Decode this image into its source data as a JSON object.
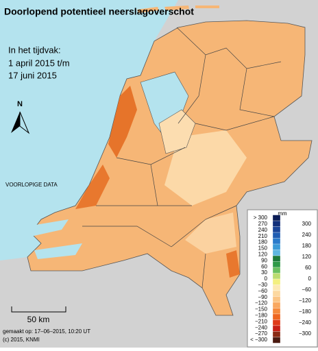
{
  "title": "Doorlopend potentieel neerslagoverschot",
  "period": {
    "label": "In het tijdvak:",
    "start": "1 april 2015 t/m",
    "end": "17 juni 2015"
  },
  "north": "N",
  "notice": "VOORLOPIGE DATA",
  "scale": "50 km",
  "legend": {
    "unit": "mm",
    "left_labels": [
      "> 300",
      "270",
      "240",
      "210",
      "180",
      "150",
      "120",
      "90",
      "60",
      "30",
      "0",
      "−30",
      "−60",
      "−90",
      "−120",
      "−150",
      "−180",
      "−210",
      "−240",
      "−270",
      "< −300"
    ],
    "right_labels": [
      "300",
      "240",
      "180",
      "120",
      "60",
      "0",
      "−60",
      "−120",
      "−180",
      "−240",
      "−300"
    ],
    "colors": [
      "#0b1d55",
      "#12307a",
      "#1a4598",
      "#205db2",
      "#2b7bcb",
      "#3c9ad7",
      "#5eb6e0",
      "#1d7a3a",
      "#2f9a48",
      "#6cc060",
      "#bcdc70",
      "#f3ef80",
      "#fde9b4",
      "#fcd8a0",
      "#fbc484",
      "#f9a860",
      "#f58a3c",
      "#ee6620",
      "#df3a18",
      "#c61e14",
      "#8a2a14",
      "#4a1a10"
    ]
  },
  "footer": {
    "made": "gemaakt op: 17–06–2015, 10:20 UT",
    "copyright": "(c) 2015, KNMI"
  }
}
